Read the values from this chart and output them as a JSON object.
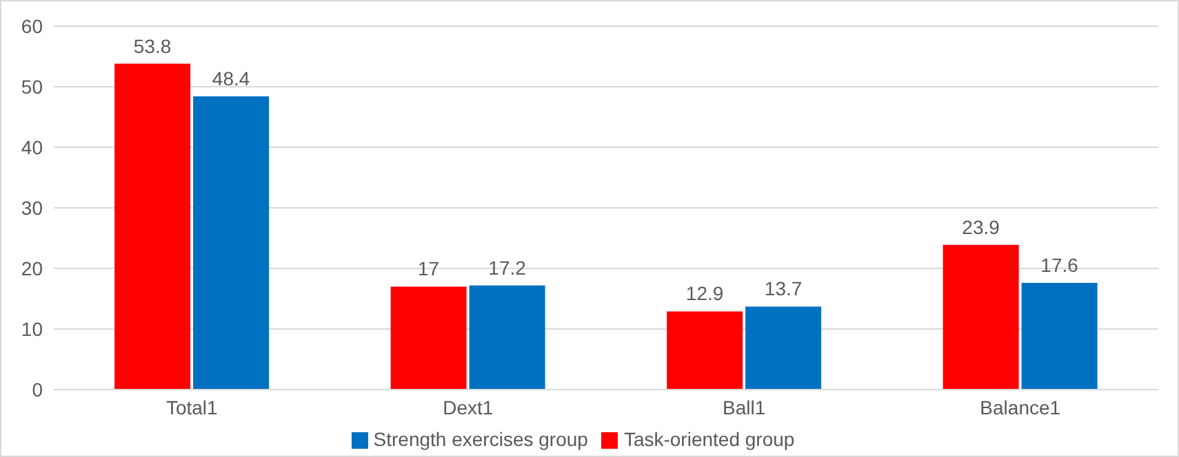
{
  "chart_data": {
    "type": "bar",
    "categories": [
      "Total1",
      "Dext1",
      "Ball1",
      "Balance1"
    ],
    "series": [
      {
        "name": "Task-oriented group",
        "color": "#ff0000",
        "values": [
          53.8,
          17,
          12.9,
          23.9
        ]
      },
      {
        "name": "Strength exercises group",
        "color": "#0070c0",
        "values": [
          48.4,
          17.2,
          13.7,
          17.6
        ]
      }
    ],
    "ylim": [
      0,
      60
    ],
    "yticks": [
      0,
      10,
      20,
      30,
      40,
      50,
      60
    ],
    "grid": "y",
    "legend": "bottom",
    "data_labels": true
  }
}
